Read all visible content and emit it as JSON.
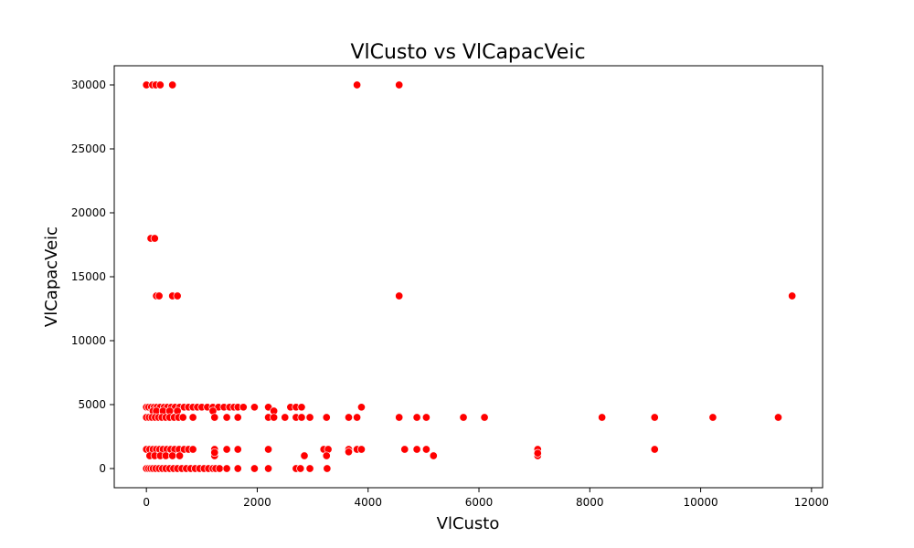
{
  "chart_data": {
    "type": "scatter",
    "title": "VlCusto vs VlCapacVeic",
    "xlabel": "VlCusto",
    "ylabel": "VlCapacVeic",
    "xlim": [
      -580,
      12200
    ],
    "ylim": [
      -1500,
      31500
    ],
    "x_ticks": [
      0,
      2000,
      4000,
      6000,
      8000,
      10000,
      12000
    ],
    "y_ticks": [
      0,
      5000,
      10000,
      15000,
      20000,
      25000,
      30000
    ],
    "grid": false,
    "legend": "none",
    "color": "#ff0000",
    "series": [
      {
        "points": [
          [
            0,
            30000
          ],
          [
            110,
            30000
          ],
          [
            170,
            30000
          ],
          [
            250,
            30000
          ],
          [
            470,
            30000
          ],
          [
            3800,
            30000
          ],
          [
            4560,
            30000
          ],
          [
            80,
            18000
          ],
          [
            150,
            18000
          ],
          [
            180,
            13500
          ],
          [
            230,
            13500
          ],
          [
            470,
            13500
          ],
          [
            560,
            13500
          ],
          [
            4560,
            13500
          ],
          [
            11650,
            13500
          ],
          [
            0,
            4800
          ],
          [
            40,
            4800
          ],
          [
            90,
            4800
          ],
          [
            140,
            4800
          ],
          [
            190,
            4800
          ],
          [
            250,
            4800
          ],
          [
            320,
            4800
          ],
          [
            380,
            4800
          ],
          [
            450,
            4800
          ],
          [
            520,
            4800
          ],
          [
            600,
            4800
          ],
          [
            680,
            4800
          ],
          [
            760,
            4800
          ],
          [
            840,
            4800
          ],
          [
            920,
            4800
          ],
          [
            1000,
            4800
          ],
          [
            1100,
            4800
          ],
          [
            1200,
            4800
          ],
          [
            1300,
            4800
          ],
          [
            1400,
            4800
          ],
          [
            1500,
            4800
          ],
          [
            1580,
            4800
          ],
          [
            1650,
            4800
          ],
          [
            1750,
            4800
          ],
          [
            1950,
            4800
          ],
          [
            2200,
            4800
          ],
          [
            2600,
            4800
          ],
          [
            2700,
            4800
          ],
          [
            2800,
            4800
          ],
          [
            3880,
            4800
          ],
          [
            120,
            4500
          ],
          [
            180,
            4500
          ],
          [
            300,
            4500
          ],
          [
            420,
            4500
          ],
          [
            560,
            4500
          ],
          [
            1200,
            4500
          ],
          [
            2300,
            4500
          ],
          [
            0,
            4000
          ],
          [
            50,
            4000
          ],
          [
            100,
            4000
          ],
          [
            160,
            4000
          ],
          [
            220,
            4000
          ],
          [
            280,
            4000
          ],
          [
            350,
            4000
          ],
          [
            420,
            4000
          ],
          [
            500,
            4000
          ],
          [
            580,
            4000
          ],
          [
            660,
            4000
          ],
          [
            840,
            4000
          ],
          [
            1230,
            4000
          ],
          [
            1450,
            4000
          ],
          [
            1650,
            4000
          ],
          [
            2200,
            4000
          ],
          [
            2300,
            4000
          ],
          [
            2500,
            4000
          ],
          [
            2700,
            4000
          ],
          [
            2800,
            4000
          ],
          [
            2950,
            4000
          ],
          [
            3250,
            4000
          ],
          [
            3650,
            4000
          ],
          [
            3800,
            4000
          ],
          [
            4560,
            4000
          ],
          [
            4880,
            4000
          ],
          [
            5050,
            4000
          ],
          [
            5720,
            4000
          ],
          [
            6100,
            4000
          ],
          [
            8220,
            4000
          ],
          [
            9170,
            4000
          ],
          [
            10220,
            4000
          ],
          [
            11400,
            4000
          ],
          [
            0,
            1500
          ],
          [
            60,
            1500
          ],
          [
            120,
            1500
          ],
          [
            180,
            1500
          ],
          [
            240,
            1500
          ],
          [
            300,
            1500
          ],
          [
            370,
            1500
          ],
          [
            440,
            1500
          ],
          [
            510,
            1500
          ],
          [
            590,
            1500
          ],
          [
            680,
            1500
          ],
          [
            760,
            1500
          ],
          [
            840,
            1500
          ],
          [
            1230,
            1500
          ],
          [
            1450,
            1500
          ],
          [
            1650,
            1500
          ],
          [
            2200,
            1500
          ],
          [
            3200,
            1500
          ],
          [
            3280,
            1500
          ],
          [
            3650,
            1500
          ],
          [
            3800,
            1500
          ],
          [
            3880,
            1500
          ],
          [
            4660,
            1500
          ],
          [
            4880,
            1500
          ],
          [
            5050,
            1500
          ],
          [
            7060,
            1500
          ],
          [
            9170,
            1500
          ],
          [
            60,
            1000
          ],
          [
            150,
            1000
          ],
          [
            250,
            1000
          ],
          [
            350,
            1000
          ],
          [
            470,
            1000
          ],
          [
            600,
            1000
          ],
          [
            1230,
            1000
          ],
          [
            2850,
            1000
          ],
          [
            3250,
            1000
          ],
          [
            5180,
            1000
          ],
          [
            7060,
            1000
          ],
          [
            3650,
            1300
          ],
          [
            7060,
            1200
          ],
          [
            1230,
            1250
          ],
          [
            0,
            0
          ],
          [
            40,
            0
          ],
          [
            80,
            0
          ],
          [
            120,
            0
          ],
          [
            170,
            0
          ],
          [
            230,
            0
          ],
          [
            290,
            0
          ],
          [
            350,
            0
          ],
          [
            420,
            0
          ],
          [
            490,
            0
          ],
          [
            560,
            0
          ],
          [
            640,
            0
          ],
          [
            720,
            0
          ],
          [
            800,
            0
          ],
          [
            880,
            0
          ],
          [
            960,
            0
          ],
          [
            1040,
            0
          ],
          [
            1120,
            0
          ],
          [
            1200,
            0
          ],
          [
            1250,
            0
          ],
          [
            1320,
            0
          ],
          [
            1450,
            0
          ],
          [
            1650,
            0
          ],
          [
            1950,
            0
          ],
          [
            2200,
            0
          ],
          [
            2700,
            0
          ],
          [
            2780,
            0
          ],
          [
            2950,
            0
          ],
          [
            3260,
            0
          ]
        ]
      }
    ]
  }
}
